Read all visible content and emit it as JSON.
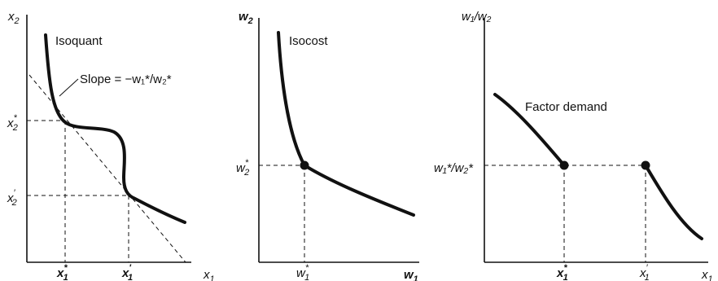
{
  "panel1": {
    "y_axis_label": "x",
    "y_axis_sub": "2",
    "x_axis_label": "x",
    "x_axis_sub": "1",
    "curve_label": "Isoquant",
    "slope_label": "Slope = −w₁*/w₂*",
    "y_ticks": [
      {
        "main": "x",
        "sub": "2",
        "sup": "*"
      },
      {
        "main": "x",
        "sub": "2",
        "sup": "′"
      }
    ],
    "x_ticks": [
      {
        "main": "x",
        "sub": "1",
        "sup": "*"
      },
      {
        "main": "x",
        "sub": "1",
        "sup": "′"
      }
    ]
  },
  "panel2": {
    "y_axis_label": "w",
    "y_axis_sub": "2",
    "x_axis_label": "w",
    "x_axis_sub": "1",
    "curve_label": "Isocost",
    "y_tick": {
      "main": "w",
      "sub": "2",
      "sup": "*"
    },
    "x_tick": {
      "main": "w",
      "sub": "1",
      "sup": "*"
    }
  },
  "panel3": {
    "y_axis_label": "w₁/w₂",
    "x_axis_label": "x",
    "x_axis_sub": "1",
    "curve_label": "Factor demand",
    "y_tick": "w₁*/w₂*",
    "x_ticks": [
      {
        "main": "x",
        "sub": "1",
        "sup": "*"
      },
      {
        "main": "x",
        "sub": "1",
        "sup": "′"
      }
    ]
  }
}
